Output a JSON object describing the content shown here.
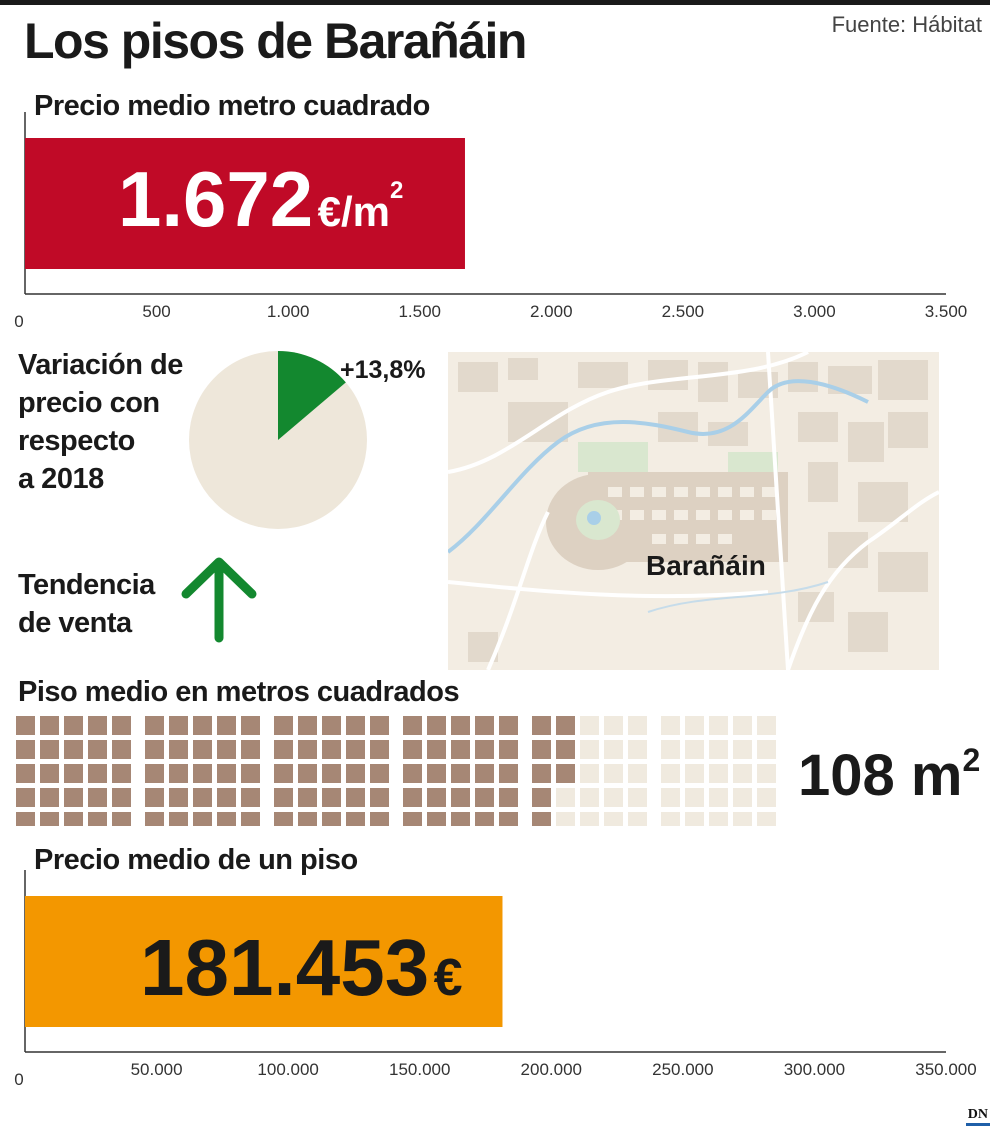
{
  "title": "Los pisos de Barañáin",
  "source": "Fuente: Hábitat",
  "chart_data": [
    {
      "type": "bar",
      "title": "Precio medio metro cuadrado",
      "value": 1672,
      "value_label": "1.672",
      "unit": "€/m",
      "unit_sup": "2",
      "xlim": [
        0,
        3500
      ],
      "ticks": [
        "0",
        "500",
        "1.000",
        "1.500",
        "2.000",
        "2.500",
        "3.000",
        "3.500"
      ],
      "tick_values": [
        0,
        500,
        1000,
        1500,
        2000,
        2500,
        3000,
        3500
      ],
      "color": "#c00a27"
    },
    {
      "type": "pie",
      "title_lines": [
        "Variación de",
        "precio con",
        "respecto",
        "a 2018"
      ],
      "value_percent": 13.8,
      "value_label": "+13,8%",
      "slice_color": "#13882f",
      "rest_color": "#eee7da"
    },
    {
      "type": "waffle",
      "title": "Piso medio en metros cuadrados",
      "value": 108,
      "total": 150,
      "value_label": "108 m",
      "unit_sup": "2",
      "filled_color": "#a68775",
      "empty_color": "#f0eadf"
    },
    {
      "type": "bar",
      "title": "Precio medio de un piso",
      "value": 181453,
      "value_label": "181.453",
      "unit": "€",
      "xlim": [
        0,
        350000
      ],
      "ticks": [
        "0",
        "50.000",
        "100.000",
        "150.000",
        "200.000",
        "250.000",
        "300.000",
        "350.000"
      ],
      "tick_values": [
        0,
        50000,
        100000,
        150000,
        200000,
        250000,
        300000,
        350000
      ],
      "color": "#f39700"
    }
  ],
  "trend": {
    "label_lines": [
      "Tendencia",
      "de venta"
    ],
    "direction": "up",
    "icon": "arrow-up-icon",
    "color": "#13882f"
  },
  "map": {
    "label": "Barañáin"
  },
  "logo": "DN"
}
